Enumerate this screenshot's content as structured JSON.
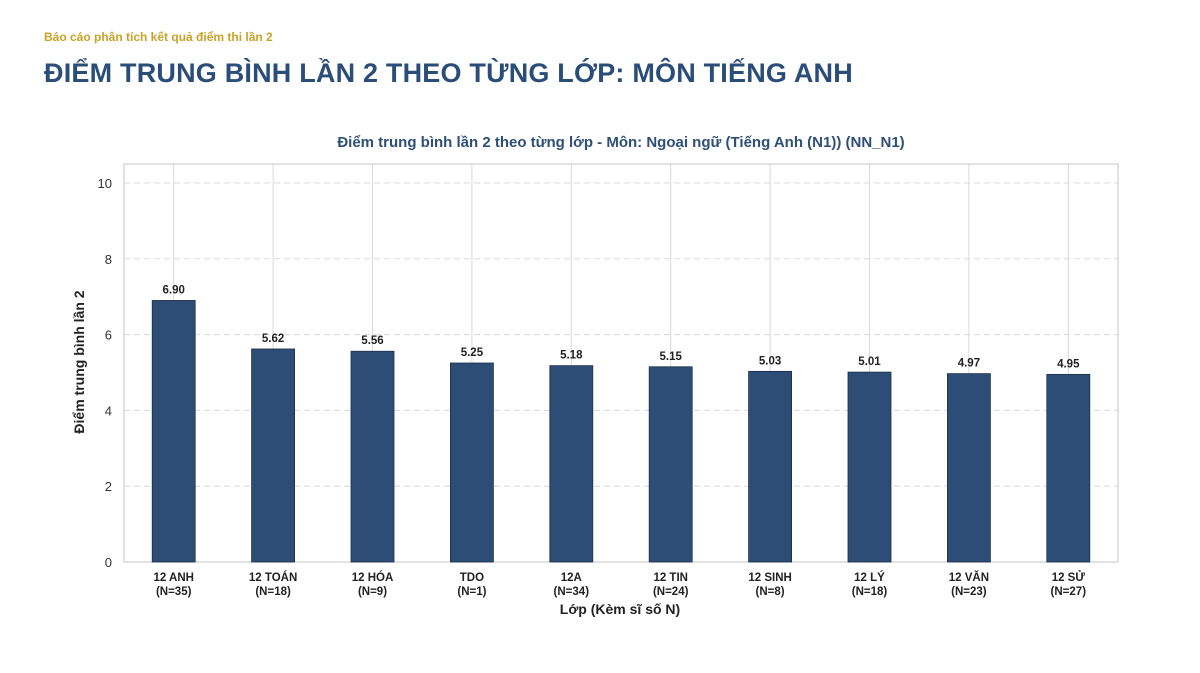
{
  "header": {
    "subtitle": "Báo cáo phân tích kết quả điểm thi lần 2",
    "title": "ĐIỂM TRUNG BÌNH LẦN 2 THEO TỪNG LỚP: MÔN TIẾNG ANH"
  },
  "colors": {
    "bar": "#2e4d76",
    "bar_edge": "#1c2f48",
    "grid": "#d6d9de",
    "frame": "#cfcfcf",
    "title": "#2a4d7a",
    "subtitle": "#c9a227"
  },
  "chart_data": {
    "type": "bar",
    "title": "Điểm trung bình lần 2 theo từng lớp - Môn: Ngoại ngữ (Tiếng Anh (N1)) (NN_N1)",
    "xlabel": "Lớp (Kèm sĩ số N)",
    "ylabel": "Điểm trung bình lần 2",
    "ylim": [
      0,
      10.5
    ],
    "yticks": [
      0,
      2,
      4,
      6,
      8,
      10
    ],
    "grid": true,
    "categories": [
      "12 ANH",
      "12 TOÁN",
      "12 HÓA",
      "TDO",
      "12A",
      "12 TIN",
      "12 SINH",
      "12 LÝ",
      "12 VĂN",
      "12 SỬ"
    ],
    "category_counts": [
      "(N=35)",
      "(N=18)",
      "(N=9)",
      "(N=1)",
      "(N=34)",
      "(N=24)",
      "(N=8)",
      "(N=18)",
      "(N=23)",
      "(N=27)"
    ],
    "values": [
      6.9,
      5.62,
      5.56,
      5.25,
      5.18,
      5.15,
      5.03,
      5.01,
      4.97,
      4.95
    ],
    "value_labels": [
      "6.90",
      "5.62",
      "5.56",
      "5.25",
      "5.18",
      "5.15",
      "5.03",
      "5.01",
      "4.97",
      "4.95"
    ]
  }
}
